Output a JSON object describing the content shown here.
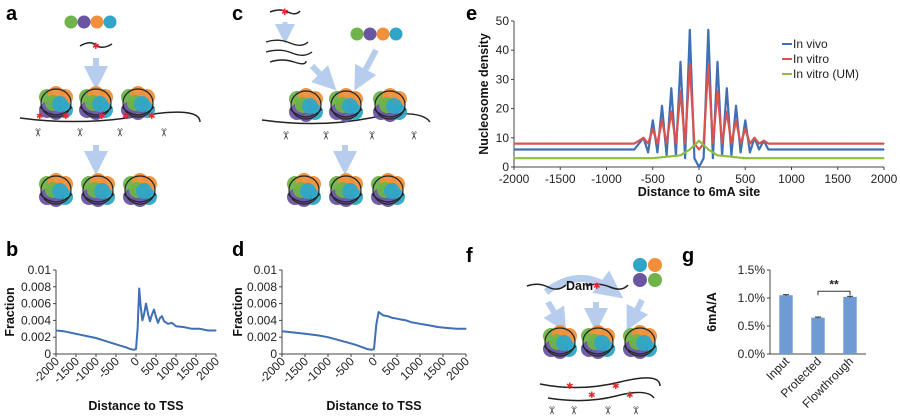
{
  "panels": {
    "a": "a",
    "b": "b",
    "c": "c",
    "d": "d",
    "e": "e",
    "f": "f",
    "g": "g"
  },
  "diagram_f": {
    "enzyme_label": "Dam"
  },
  "colors": {
    "series_blue": "#3f6fb5",
    "series_red": "#d9534f",
    "series_green": "#8cbf3f",
    "bar_blue": "#6f9ad4",
    "arrow_blue": "#b6cdee",
    "histone_orange": "#f0903a",
    "histone_purple": "#6a55a3",
    "histone_green": "#6fb34a",
    "histone_teal": "#2fa6c7",
    "methyl_red": "#e8262a"
  },
  "chart_data": [
    {
      "id": "b",
      "type": "line",
      "title": "",
      "xlabel": "Distance to TSS",
      "ylabel": "Fraction",
      "xlim": [
        -2000,
        2000
      ],
      "ylim": [
        0,
        0.01
      ],
      "xticks": [
        "-2000",
        "-1500",
        "-1000",
        "-500",
        "0",
        "500",
        "1000",
        "1500",
        "2000"
      ],
      "yticks": [
        "0",
        "0.002",
        "0.004",
        "0.006",
        "0.008",
        "0.01"
      ],
      "grid": false,
      "series": [
        {
          "x": [
            -2000,
            -1800,
            -1500,
            -1200,
            -1000,
            -800,
            -600,
            -400,
            -250,
            -150,
            -50,
            0,
            40,
            80,
            120,
            160,
            200,
            250,
            300,
            350,
            400,
            450,
            500,
            550,
            600,
            650,
            700,
            800,
            900,
            1000,
            1200,
            1400,
            1600,
            1800,
            2000
          ],
          "y": [
            0.0028,
            0.0027,
            0.0024,
            0.0021,
            0.0019,
            0.0016,
            0.0013,
            0.001,
            0.0008,
            0.0006,
            0.0005,
            0.0006,
            0.003,
            0.0078,
            0.0055,
            0.004,
            0.0047,
            0.006,
            0.0048,
            0.0039,
            0.0047,
            0.0053,
            0.0044,
            0.0037,
            0.0043,
            0.0045,
            0.0039,
            0.0036,
            0.0037,
            0.0033,
            0.0032,
            0.003,
            0.003,
            0.0028,
            0.0028
          ]
        }
      ]
    },
    {
      "id": "d",
      "type": "line",
      "title": "",
      "xlabel": "Distance to TSS",
      "ylabel": "Fraction",
      "xlim": [
        -2000,
        2000
      ],
      "ylim": [
        0,
        0.01
      ],
      "xticks": [
        "-2000",
        "-1500",
        "-1000",
        "-500",
        "0",
        "500",
        "1000",
        "1500",
        "2000"
      ],
      "yticks": [
        "0",
        "0.002",
        "0.004",
        "0.006",
        "0.008",
        "0.01"
      ],
      "grid": false,
      "series": [
        {
          "x": [
            -2000,
            -1800,
            -1500,
            -1200,
            -1000,
            -800,
            -600,
            -400,
            -250,
            -150,
            -50,
            0,
            50,
            100,
            150,
            200,
            300,
            400,
            500,
            600,
            700,
            800,
            1000,
            1200,
            1400,
            1600,
            1800,
            2000
          ],
          "y": [
            0.0027,
            0.0026,
            0.0024,
            0.0022,
            0.002,
            0.0017,
            0.0014,
            0.0011,
            0.0008,
            0.0006,
            0.0005,
            0.0006,
            0.0035,
            0.005,
            0.0048,
            0.0046,
            0.0045,
            0.0043,
            0.0042,
            0.0041,
            0.004,
            0.0038,
            0.0036,
            0.0034,
            0.0032,
            0.0031,
            0.003,
            0.003
          ]
        }
      ]
    },
    {
      "id": "e",
      "type": "line",
      "title": "",
      "xlabel": "Distance to 6mA site",
      "ylabel": "Nucleosome density",
      "xlim": [
        -2000,
        2000
      ],
      "ylim": [
        0,
        50
      ],
      "xticks": [
        "-2000",
        "-1500",
        "-1000",
        "-500",
        "0",
        "500",
        "1000",
        "1500",
        "2000"
      ],
      "yticks": [
        "0",
        "10",
        "20",
        "30",
        "40",
        "50"
      ],
      "grid": false,
      "legend": "top-right",
      "series": [
        {
          "name": "In vivo",
          "x": [
            -2000,
            -1600,
            -1200,
            -900,
            -700,
            -600,
            -550,
            -500,
            -450,
            -400,
            -350,
            -300,
            -250,
            -200,
            -150,
            -100,
            -50,
            0,
            50,
            100,
            150,
            200,
            250,
            300,
            350,
            400,
            450,
            500,
            550,
            600,
            650,
            700,
            750,
            900,
            1200,
            1600,
            2000
          ],
          "y": [
            6,
            6,
            6,
            6,
            6,
            10,
            5,
            16,
            5,
            21,
            4,
            27,
            4,
            36,
            3,
            47,
            3,
            0,
            3,
            47,
            3,
            36,
            4,
            27,
            4,
            21,
            5,
            16,
            5,
            10,
            6,
            9,
            6,
            6,
            6,
            6,
            6
          ]
        },
        {
          "name": "In vitro",
          "x": [
            -2000,
            -1600,
            -1200,
            -900,
            -700,
            -600,
            -550,
            -500,
            -450,
            -400,
            -350,
            -300,
            -250,
            -200,
            -150,
            -100,
            -50,
            0,
            50,
            100,
            150,
            200,
            250,
            300,
            350,
            400,
            450,
            500,
            550,
            600,
            650,
            700,
            750,
            900,
            1200,
            1600,
            2000
          ],
          "y": [
            8,
            8,
            8,
            8,
            8,
            10,
            8,
            13,
            8,
            16,
            8,
            19,
            8,
            26,
            8,
            35,
            8,
            6,
            8,
            35,
            8,
            26,
            8,
            19,
            8,
            16,
            8,
            13,
            8,
            10,
            8,
            9,
            8,
            8,
            8,
            8,
            8
          ]
        },
        {
          "name": "In vitro (UM)",
          "x": [
            -2000,
            -1500,
            -1000,
            -500,
            -200,
            -100,
            0,
            100,
            200,
            500,
            1000,
            1500,
            2000
          ],
          "y": [
            3,
            3,
            3,
            3,
            4,
            6,
            9,
            6,
            4,
            3,
            3,
            3,
            3
          ]
        }
      ]
    },
    {
      "id": "g",
      "type": "bar",
      "title": "",
      "xlabel": "",
      "ylabel": "6mA/A",
      "categories": [
        "Input",
        "Protected",
        "Flowthrough"
      ],
      "values": [
        1.05,
        0.65,
        1.02
      ],
      "errors": [
        0.01,
        0.01,
        0.01
      ],
      "ylim": [
        0,
        1.5
      ],
      "yticks": [
        "0.0%",
        "0.5%",
        "1.0%",
        "1.5%"
      ],
      "annotation": "**",
      "grid": false
    }
  ]
}
